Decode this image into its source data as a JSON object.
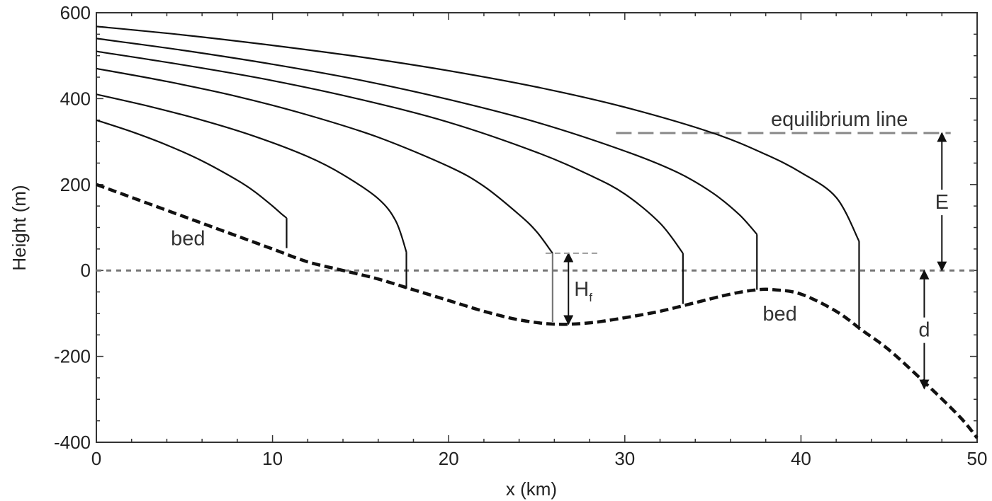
{
  "chart_data": {
    "type": "line",
    "title": "",
    "xlabel": "x (km)",
    "ylabel": "Height (m)",
    "xlim": [
      0,
      50
    ],
    "ylim": [
      -400,
      600
    ],
    "x_ticks": [
      0,
      10,
      20,
      30,
      40,
      50
    ],
    "y_ticks": [
      -400,
      -200,
      0,
      200,
      400,
      600
    ],
    "x_tick_labels": [
      "0",
      "10",
      "20",
      "30",
      "40",
      "50"
    ],
    "y_tick_labels": [
      "-400",
      "-200",
      "0",
      "200",
      "400",
      "600"
    ],
    "grid": false,
    "sea_level": 0,
    "equilibrium_line": {
      "label": "equilibrium line",
      "y": 320,
      "x_start": 29.5,
      "x_end": 48.5
    },
    "bed": {
      "x": [
        0,
        2,
        4,
        6,
        8,
        10,
        12,
        14,
        16,
        18,
        20,
        22,
        24,
        26,
        28,
        30,
        32,
        34,
        36,
        37.5,
        38.5,
        40,
        42,
        43.5,
        45,
        47,
        49,
        50
      ],
      "y": [
        200,
        170,
        140,
        110,
        80,
        50,
        20,
        0,
        -20,
        -45,
        -70,
        -95,
        -115,
        -125,
        -122,
        -110,
        -95,
        -75,
        -55,
        -45,
        -45,
        -55,
        -95,
        -140,
        -185,
        -260,
        -340,
        -390
      ],
      "labels": [
        {
          "text": "bed",
          "x": 5.2,
          "y": 75
        },
        {
          "text": "bed",
          "x": 38.8,
          "y": -100
        }
      ]
    },
    "series": [
      {
        "x": [
          0,
          2,
          4,
          6,
          8,
          9,
          10,
          10.5,
          10.8
        ],
        "y": [
          350,
          323,
          292,
          255,
          210,
          183,
          150,
          132,
          122
        ],
        "front": {
          "x": 10.8,
          "top": 122,
          "bottom": 52
        }
      },
      {
        "x": [
          0,
          3,
          6,
          9,
          12,
          14,
          16,
          17,
          17.6
        ],
        "y": [
          410,
          382,
          350,
          312,
          265,
          223,
          167,
          115,
          43
        ],
        "front": {
          "x": 17.6,
          "top": 43,
          "bottom": -42
        }
      },
      {
        "x": [
          0,
          4,
          8,
          12,
          16,
          20,
          22,
          24,
          25,
          25.9
        ],
        "y": [
          470,
          440,
          405,
          362,
          310,
          242,
          196,
          130,
          90,
          40
        ],
        "front": {
          "x": 25.9,
          "top": 40,
          "bottom": -120
        }
      },
      {
        "x": [
          0,
          5,
          10,
          15,
          20,
          25,
          28,
          30,
          32,
          33.3
        ],
        "y": [
          510,
          478,
          442,
          398,
          345,
          275,
          222,
          178,
          110,
          40
        ],
        "front": {
          "x": 33.3,
          "top": 40,
          "bottom": -78
        }
      },
      {
        "x": [
          0,
          5,
          10,
          15,
          20,
          25,
          30,
          33,
          35,
          36.5,
          37.5
        ],
        "y": [
          540,
          512,
          480,
          443,
          398,
          345,
          278,
          228,
          180,
          130,
          84
        ],
        "front": {
          "x": 37.5,
          "top": 84,
          "bottom": -45
        }
      },
      {
        "x": [
          0,
          5,
          10,
          15,
          20,
          25,
          30,
          35,
          38,
          40,
          42,
          43.3
        ],
        "y": [
          568,
          548,
          524,
          497,
          465,
          427,
          380,
          320,
          270,
          228,
          170,
          68
        ],
        "front": {
          "x": 43.3,
          "top": 68,
          "bottom": -138
        }
      }
    ],
    "annotations": {
      "E": {
        "label": "E",
        "x": 48,
        "from": 320,
        "to": 0
      },
      "d": {
        "label": "d",
        "x": 47,
        "from": 0,
        "to": -275
      },
      "Hf": {
        "label": "H",
        "subscript": "f",
        "x": 26.8,
        "from": 40,
        "to": -125,
        "dash_y": 40,
        "dash_x_start": 25.5,
        "dash_x_end": 28.5
      }
    }
  }
}
